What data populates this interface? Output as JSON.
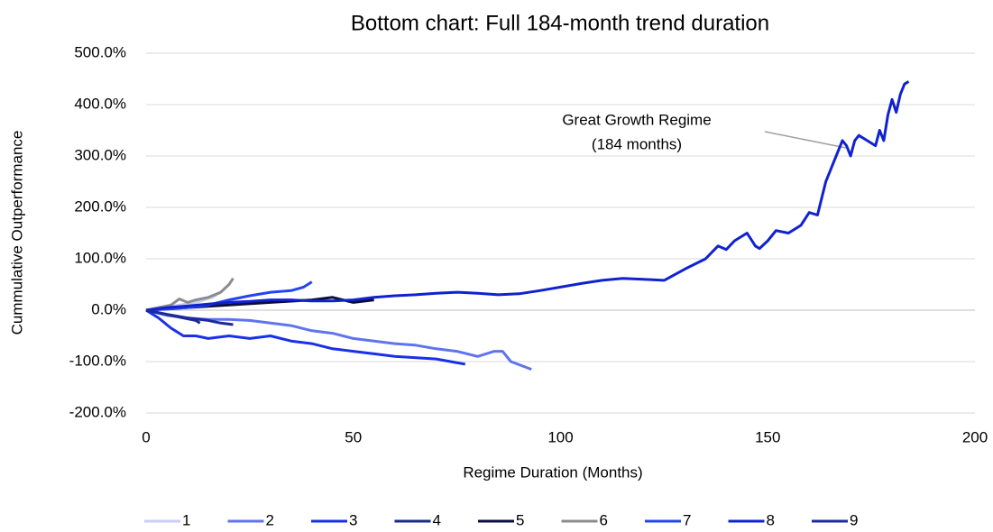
{
  "chart_data": {
    "type": "line",
    "title": "Bottom chart: Full 184-month trend duration",
    "x_label": "Regime Duration (Months)",
    "y_label": "Cummulative Outperformance",
    "xlim": [
      0,
      200
    ],
    "xticks": [
      0,
      50,
      100,
      150,
      200
    ],
    "ylim": [
      -200,
      500
    ],
    "yticks": [
      {
        "value": -200,
        "label": "-200.0%"
      },
      {
        "value": -100,
        "label": "-100.0%"
      },
      {
        "value": 0,
        "label": "0.0%"
      },
      {
        "value": 100,
        "label": "100.0%"
      },
      {
        "value": 200,
        "label": "200.0%"
      },
      {
        "value": 300,
        "label": "300.0%"
      },
      {
        "value": 400,
        "label": "400.0%"
      },
      {
        "value": 500,
        "label": "500.0%"
      }
    ],
    "grid": true,
    "legend": "bottom",
    "annotation": {
      "text": [
        "Great Growth Regime",
        "(184 months)"
      ]
    },
    "series": [
      {
        "name": "1",
        "color": "#c9cef5",
        "x": [
          0,
          4,
          8,
          12,
          16,
          18
        ],
        "values": [
          0,
          5,
          10,
          15,
          25,
          35
        ]
      },
      {
        "name": "2",
        "color": "#6073ee",
        "x": [
          0,
          5,
          10,
          15,
          20,
          25,
          30,
          35,
          40,
          45,
          50,
          55,
          60,
          65,
          70,
          75,
          80,
          84,
          86,
          88,
          93
        ],
        "values": [
          0,
          -10,
          -15,
          -18,
          -18,
          -20,
          -25,
          -30,
          -40,
          -45,
          -55,
          -60,
          -65,
          -68,
          -75,
          -80,
          -90,
          -80,
          -80,
          -100,
          -115
        ]
      },
      {
        "name": "3",
        "color": "#1a30e6",
        "x": [
          0,
          3,
          6,
          9,
          12,
          15,
          20,
          25,
          30,
          35,
          40,
          45,
          50,
          55,
          60,
          70,
          77
        ],
        "values": [
          0,
          -15,
          -35,
          -50,
          -50,
          -55,
          -50,
          -55,
          -50,
          -60,
          -65,
          -75,
          -80,
          -85,
          -90,
          -95,
          -105
        ]
      },
      {
        "name": "4",
        "color": "#1a2a8a",
        "x": [
          0,
          3,
          6,
          9,
          12,
          13
        ],
        "values": [
          0,
          -5,
          -10,
          -15,
          -20,
          -25
        ]
      },
      {
        "name": "5",
        "color": "#0a0f3a",
        "x": [
          0,
          10,
          20,
          30,
          40,
          45,
          50,
          55
        ],
        "values": [
          0,
          5,
          10,
          15,
          20,
          25,
          15,
          20
        ]
      },
      {
        "name": "6",
        "color": "#8c8c8c",
        "x": [
          0,
          3,
          6,
          8,
          10,
          12,
          15,
          18,
          20,
          21
        ],
        "values": [
          0,
          5,
          10,
          22,
          15,
          20,
          25,
          35,
          50,
          62
        ]
      },
      {
        "name": "7",
        "color": "#2444f2",
        "x": [
          0,
          5,
          10,
          15,
          20,
          25,
          30,
          35,
          38,
          40
        ],
        "values": [
          0,
          2,
          5,
          10,
          20,
          28,
          35,
          38,
          45,
          55
        ]
      },
      {
        "name": "8",
        "color": "#1022d0",
        "x": [
          0,
          5,
          10,
          15,
          20,
          25,
          30,
          35,
          40,
          45,
          50,
          55,
          60,
          65,
          70,
          75,
          80,
          85,
          90,
          95,
          100,
          105,
          110,
          115,
          120,
          125,
          130,
          135,
          138,
          140,
          142,
          145,
          147,
          148,
          150,
          152,
          155,
          158,
          160,
          162,
          164,
          166,
          168,
          169,
          170,
          171,
          172,
          174,
          176,
          177,
          178,
          179,
          180,
          181,
          182,
          183,
          184
        ],
        "values": [
          0,
          5,
          8,
          12,
          15,
          17,
          20,
          20,
          18,
          18,
          20,
          25,
          28,
          30,
          33,
          35,
          33,
          30,
          32,
          38,
          45,
          52,
          58,
          62,
          60,
          58,
          80,
          100,
          125,
          118,
          135,
          150,
          125,
          120,
          135,
          155,
          150,
          165,
          190,
          185,
          250,
          290,
          330,
          320,
          300,
          330,
          340,
          330,
          320,
          350,
          330,
          380,
          410,
          385,
          420,
          440,
          445
        ]
      },
      {
        "name": "9",
        "color": "#1c2a9c",
        "x": [
          0,
          5,
          10,
          15,
          18,
          21
        ],
        "values": [
          0,
          -8,
          -15,
          -20,
          -25,
          -28
        ]
      }
    ]
  }
}
